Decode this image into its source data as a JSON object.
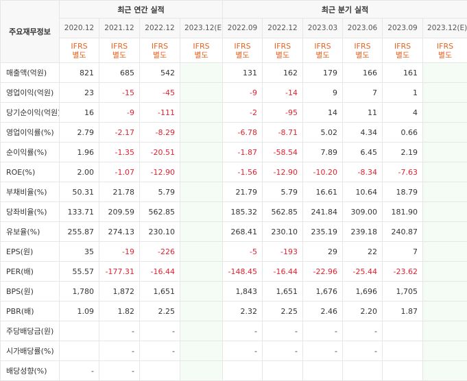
{
  "header": {
    "row_label": "주요재무정보",
    "annual_group": "최근 연간 실적",
    "quarter_group": "최근 분기 실적",
    "periods": [
      "2020.12",
      "2021.12",
      "2022.12",
      "2023.12(E)",
      "2022.09",
      "2022.12",
      "2023.03",
      "2023.06",
      "2023.09",
      "2023.12(E)"
    ],
    "ifrs_line1": "IFRS",
    "ifrs_line2": "별도"
  },
  "rows": [
    {
      "label": "매출액(억원)",
      "values": [
        "821",
        "685",
        "542",
        "",
        "131",
        "162",
        "179",
        "166",
        "161",
        ""
      ]
    },
    {
      "label": "영업이익(억원)",
      "values": [
        "23",
        "-15",
        "-45",
        "",
        "-9",
        "-14",
        "9",
        "7",
        "1",
        ""
      ]
    },
    {
      "label": "당기순이익(억원)",
      "values": [
        "16",
        "-9",
        "-111",
        "",
        "-2",
        "-95",
        "14",
        "11",
        "4",
        ""
      ]
    },
    {
      "label": "영업이익률(%)",
      "values": [
        "2.79",
        "-2.17",
        "-8.29",
        "",
        "-6.78",
        "-8.71",
        "5.02",
        "4.34",
        "0.66",
        ""
      ]
    },
    {
      "label": "순이익률(%)",
      "values": [
        "1.96",
        "-1.35",
        "-20.51",
        "",
        "-1.87",
        "-58.54",
        "7.89",
        "6.45",
        "2.19",
        ""
      ]
    },
    {
      "label": "ROE(%)",
      "values": [
        "2.00",
        "-1.07",
        "-12.90",
        "",
        "-1.56",
        "-12.90",
        "-10.20",
        "-8.34",
        "-7.63",
        ""
      ]
    },
    {
      "label": "부채비율(%)",
      "values": [
        "50.31",
        "21.78",
        "5.79",
        "",
        "21.79",
        "5.79",
        "16.61",
        "10.64",
        "18.79",
        ""
      ]
    },
    {
      "label": "당좌비율(%)",
      "values": [
        "133.71",
        "209.59",
        "562.85",
        "",
        "185.32",
        "562.85",
        "241.84",
        "309.00",
        "181.90",
        ""
      ]
    },
    {
      "label": "유보율(%)",
      "values": [
        "255.87",
        "274.13",
        "230.10",
        "",
        "268.41",
        "230.10",
        "235.19",
        "239.18",
        "240.87",
        ""
      ]
    },
    {
      "label": "EPS(원)",
      "values": [
        "35",
        "-19",
        "-226",
        "",
        "-5",
        "-193",
        "29",
        "22",
        "7",
        ""
      ]
    },
    {
      "label": "PER(배)",
      "values": [
        "55.57",
        "-177.31",
        "-16.44",
        "",
        "-148.45",
        "-16.44",
        "-22.96",
        "-25.44",
        "-23.62",
        ""
      ]
    },
    {
      "label": "BPS(원)",
      "values": [
        "1,780",
        "1,872",
        "1,651",
        "",
        "1,843",
        "1,651",
        "1,676",
        "1,696",
        "1,705",
        ""
      ]
    },
    {
      "label": "PBR(배)",
      "values": [
        "1.09",
        "1.82",
        "2.25",
        "",
        "2.32",
        "2.25",
        "2.46",
        "2.20",
        "1.87",
        ""
      ]
    },
    {
      "label": "주당배당금(원)",
      "values": [
        "",
        "-",
        "-",
        "",
        "-",
        "-",
        "-",
        "-",
        "",
        ""
      ]
    },
    {
      "label": "시가배당률(%)",
      "values": [
        "",
        "-",
        "-",
        "",
        "-",
        "-",
        "-",
        "-",
        "",
        ""
      ]
    },
    {
      "label": "배당성향(%)",
      "values": [
        "-",
        "-",
        "",
        "",
        "",
        "",
        "",
        "",
        "",
        ""
      ]
    }
  ],
  "colors": {
    "negative": "#e3212f",
    "ifrs": "#e8631f",
    "estimate": "#3e9b3e",
    "estimate_bg": "#f5fbf5"
  }
}
